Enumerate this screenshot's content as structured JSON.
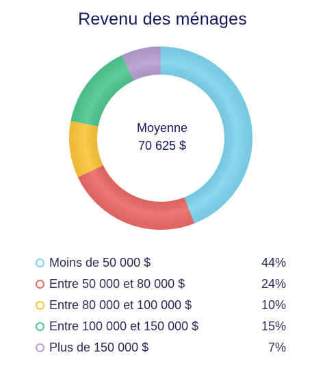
{
  "chart_data": {
    "type": "pie",
    "variant": "donut",
    "title": "Revenu des ménages",
    "center_label": {
      "line1": "Moyenne",
      "line2": "70 625 $"
    },
    "categories": [
      "Moins de 50 000 $",
      "Entre 50 000 et 80 000 $",
      "Entre 80 000 et 100 000 $",
      "Entre 100 000 et 150 000 $",
      "Plus de 150 000 $"
    ],
    "values": [
      44,
      24,
      10,
      15,
      7
    ],
    "value_labels": [
      "44%",
      "24%",
      "10%",
      "15%",
      "7%"
    ],
    "colors": [
      "#7dd6ef",
      "#ec6a66",
      "#fcc63a",
      "#4fc890",
      "#b89fcf"
    ],
    "legend_position": "bottom"
  }
}
